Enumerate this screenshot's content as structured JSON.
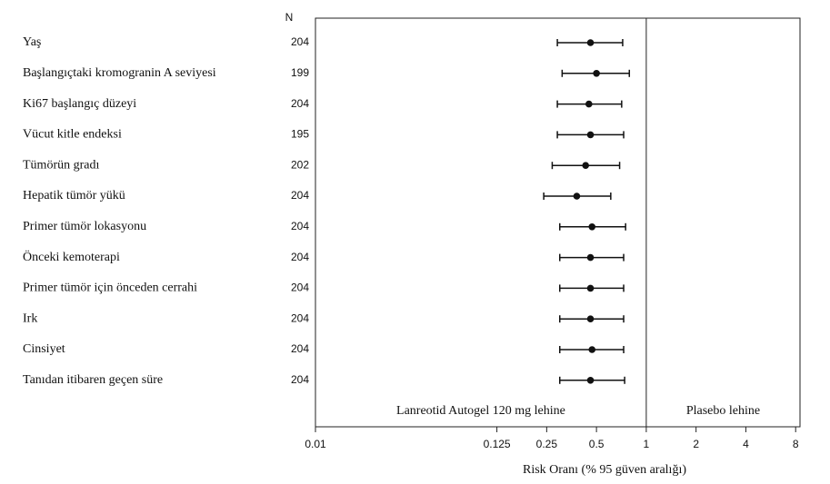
{
  "chart_data": {
    "type": "forest",
    "n_header": "N",
    "categories": [
      "Yaş",
      "Başlangıçtaki kromogranin A seviyesi",
      "Ki67 başlangıç düzeyi",
      "Vücut kitle endeksi",
      "Tümörün gradı",
      "Hepatik tümör yükü",
      "Primer tümör lokasyonu",
      "Önceki kemoterapi",
      "Primer tümör için önceden cerrahi",
      "Irk",
      "Cinsiyet",
      "Tanıdan itibaren geçen süre"
    ],
    "n": [
      204,
      199,
      204,
      195,
      202,
      204,
      204,
      204,
      204,
      204,
      204,
      204
    ],
    "values": [
      0.46,
      0.5,
      0.45,
      0.46,
      0.43,
      0.38,
      0.47,
      0.46,
      0.46,
      0.46,
      0.47,
      0.46
    ],
    "lower": [
      0.29,
      0.31,
      0.29,
      0.29,
      0.27,
      0.24,
      0.3,
      0.3,
      0.3,
      0.3,
      0.3,
      0.3
    ],
    "upper": [
      0.72,
      0.79,
      0.71,
      0.73,
      0.69,
      0.61,
      0.75,
      0.73,
      0.73,
      0.73,
      0.73,
      0.74
    ],
    "reference": 1,
    "left_label": "Lanreotid Autogel 120 mg lehine",
    "right_label": "Plasebo lehine",
    "xlabel": "Risk Oranı (% 95 güven aralığı)",
    "xlim": [
      0.01,
      8.5
    ],
    "xticks": [
      0.01,
      0.125,
      0.25,
      0.5,
      1,
      2,
      4,
      8
    ],
    "log_scale": true,
    "color": "#111111"
  }
}
